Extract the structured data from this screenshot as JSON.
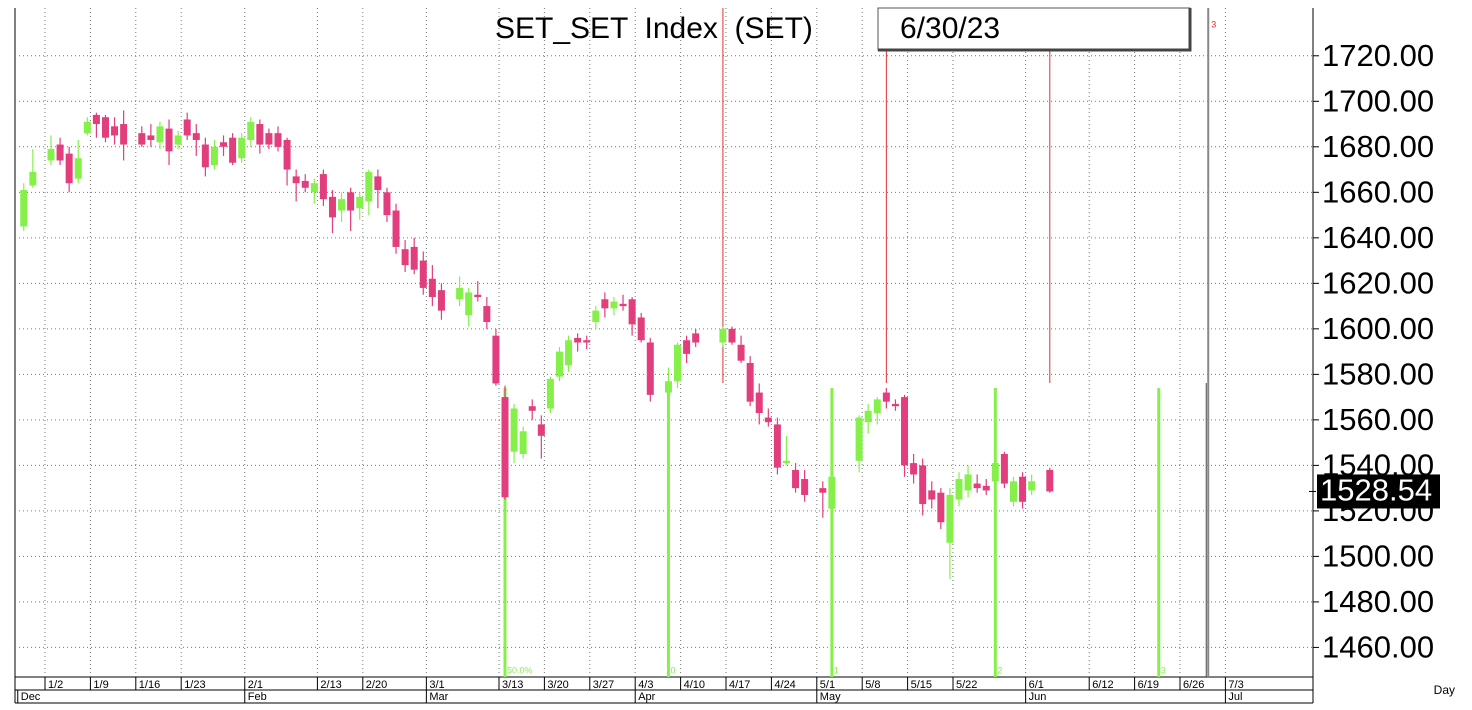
{
  "chart_data": {
    "type": "candlestick",
    "title": "SET_SET  Index  (SET)",
    "date": "6/30/23",
    "categories": [
      null,
      null,
      null,
      "1/2",
      null,
      null,
      null,
      null,
      "1/9",
      null,
      null,
      null,
      null,
      "1/16",
      null,
      null,
      null,
      null,
      "1/23",
      null,
      null,
      null,
      null,
      null,
      null,
      "2/1",
      null,
      null,
      null,
      null,
      null,
      null,
      null,
      "2/13",
      null,
      null,
      null,
      null,
      "2/20",
      null,
      null,
      null,
      null,
      null,
      null,
      "3/1",
      null,
      null,
      null,
      null,
      null,
      null,
      null,
      "3/13",
      null,
      null,
      null,
      null,
      "3/20",
      null,
      null,
      null,
      null,
      "3/27",
      null,
      null,
      null,
      null,
      "4/3",
      null,
      null,
      null,
      null,
      "4/10",
      null,
      null,
      null,
      null,
      "4/17",
      null,
      null,
      null,
      null,
      "4/24",
      null,
      null,
      null,
      null,
      "5/1",
      null,
      null,
      null,
      null,
      "5/8",
      null,
      null,
      null,
      null,
      "5/15",
      null,
      null,
      null,
      null,
      "5/22",
      null,
      null,
      null,
      null,
      null,
      null,
      null,
      "6/1",
      null,
      null,
      null,
      null,
      null,
      null,
      "6/12",
      null,
      null,
      null,
      null,
      "6/19",
      null,
      null,
      null,
      null,
      "6/26",
      null,
      null,
      null,
      null,
      "7/3",
      null,
      null
    ],
    "months": [
      "Dec",
      null,
      null,
      null,
      null,
      null,
      null,
      null,
      null,
      null,
      null,
      null,
      null,
      null,
      null,
      null,
      null,
      null,
      null,
      null,
      null,
      null,
      null,
      null,
      null,
      "Feb",
      null,
      null,
      null,
      null,
      null,
      null,
      null,
      null,
      null,
      null,
      null,
      null,
      null,
      null,
      null,
      null,
      null,
      null,
      null,
      "Mar",
      null,
      null,
      null,
      null,
      null,
      null,
      null,
      null,
      null,
      null,
      null,
      null,
      null,
      null,
      null,
      null,
      null,
      null,
      null,
      null,
      null,
      null,
      "Apr",
      null,
      null,
      null,
      null,
      null,
      null,
      null,
      null,
      null,
      null,
      null,
      null,
      null,
      null,
      null,
      null,
      null,
      null,
      null,
      "May",
      null,
      null,
      null,
      null,
      null,
      null,
      null,
      null,
      null,
      null,
      null,
      null,
      null,
      null,
      null,
      null,
      null,
      null,
      null,
      null,
      null,
      null,
      "Jun",
      null,
      null,
      null,
      null,
      null,
      null,
      null,
      null,
      null,
      null,
      null,
      null,
      null,
      null,
      null,
      null,
      null,
      null,
      null,
      null,
      null,
      "Jul",
      null,
      null
    ],
    "open": [
      1645,
      1663,
      null,
      1674,
      1681,
      1677,
      1666,
      1686,
      1694,
      1693,
      1689,
      1690,
      null,
      1686,
      1685,
      1682,
      1688,
      1681,
      1692,
      1686,
      1681,
      1672,
      1682,
      1684,
      1675,
      1683,
      1690,
      1686,
      1686,
      1683,
      1667,
      1665,
      1660,
      1668,
      1658,
      1652,
      1660,
      1653,
      1656,
      1667,
      1660,
      1652,
      1635,
      1636,
      1630,
      1622,
      1617,
      null,
      1613,
      1606,
      1615,
      1610,
      1597,
      1570,
      1546,
      1545,
      1566,
      1558,
      1565,
      1579,
      1584,
      1596,
      1595,
      1603,
      1613,
      1609,
      1611,
      1613,
      1605,
      1594,
      null,
      1572,
      1577,
      1595,
      1598,
      null,
      null,
      1594,
      1600,
      1593,
      1585,
      1572,
      1561,
      1558,
      1541,
      1538,
      1534,
      null,
      1530,
      1521,
      null,
      null,
      1542,
      1559,
      1563,
      1572,
      1567,
      1570,
      1541,
      1540,
      1529,
      1528,
      1506,
      1525,
      1529,
      1532,
      1531,
      1533,
      1545,
      1524,
      1535,
      1529,
      null,
      1538,
      null,
      null,
      null,
      null,
      null,
      null,
      null,
      null,
      null,
      null,
      null,
      null,
      null,
      null,
      null,
      null,
      null,
      null,
      null,
      null,
      null,
      null
    ],
    "high": [
      1664,
      1679,
      null,
      1685,
      1684,
      1680,
      1683,
      1693,
      1695,
      1694,
      1693,
      1696,
      null,
      1689,
      1690,
      1691,
      1692,
      1687,
      1695,
      1690,
      1684,
      1683,
      1685,
      1686,
      1686,
      1693,
      1692,
      1688,
      1689,
      1684,
      1670,
      1668,
      1666,
      1670,
      1661,
      1660,
      1662,
      1660,
      1670,
      1670,
      1662,
      1655,
      1639,
      1640,
      1634,
      1628,
      1620,
      null,
      1623,
      1618,
      1621,
      1614,
      1600,
      1575,
      1567,
      1557,
      1569,
      1562,
      1579,
      1592,
      1597,
      1598,
      1597,
      1610,
      1616,
      1614,
      1615,
      1614,
      1607,
      1596,
      null,
      1583,
      1594,
      1597,
      1600,
      null,
      null,
      1601,
      1601,
      1597,
      1588,
      1576,
      1565,
      1561,
      1553,
      1541,
      1538,
      null,
      1533,
      1546,
      null,
      null,
      1562,
      1567,
      1570,
      1574,
      1569,
      1571,
      1545,
      1543,
      1533,
      1530,
      1530,
      1537,
      1540,
      1536,
      1534,
      1546,
      1546,
      1535,
      1537,
      1536,
      null,
      1539,
      null,
      null,
      null,
      null,
      null,
      null,
      null,
      null,
      null,
      null,
      null,
      null,
      null,
      null,
      null,
      null,
      null,
      null,
      null,
      null,
      null,
      null
    ],
    "low": [
      1643,
      1662,
      null,
      1672,
      1672,
      1660,
      1664,
      1685,
      1684,
      1682,
      1681,
      1674,
      null,
      1680,
      1680,
      1679,
      1672,
      1679,
      1683,
      1676,
      1667,
      1670,
      1676,
      1672,
      1673,
      1680,
      1677,
      1679,
      1678,
      1663,
      1656,
      1660,
      1655,
      1654,
      1642,
      1647,
      1643,
      1648,
      1650,
      1653,
      1647,
      1633,
      1625,
      1624,
      1615,
      1610,
      1604,
      null,
      1610,
      1601,
      1612,
      1600,
      1575,
      1525,
      1541,
      1543,
      1560,
      1543,
      1563,
      1577,
      1581,
      1590,
      1591,
      1600,
      1605,
      1606,
      1608,
      1597,
      1594,
      1568,
      null,
      1567,
      1574,
      1585,
      1592,
      null,
      null,
      1592,
      1593,
      1585,
      1566,
      1558,
      1557,
      1536,
      1540,
      1528,
      1524,
      null,
      1517,
      1519,
      null,
      null,
      1537,
      1554,
      1558,
      1565,
      1564,
      1535,
      1532,
      1518,
      1521,
      1512,
      1490,
      1522,
      1526,
      1528,
      1527,
      1530,
      1530,
      1522,
      1521,
      1527,
      null,
      1528,
      null,
      null,
      null,
      null,
      null,
      null,
      null,
      null,
      null,
      null,
      null,
      null,
      null,
      null,
      null,
      null,
      null,
      null,
      null,
      null,
      null,
      null
    ],
    "close": [
      1661,
      1669,
      null,
      1679,
      1674,
      1664,
      1675,
      1691,
      1690,
      1684,
      1685,
      1681,
      null,
      1681,
      1683,
      1689,
      1678,
      1685,
      1685,
      1683,
      1671,
      1680,
      1680,
      1673,
      1684,
      1691,
      1681,
      1681,
      1680,
      1670,
      1664,
      1662,
      1664,
      1657,
      1649,
      1657,
      1652,
      1658,
      1669,
      1661,
      1650,
      1636,
      1628,
      1626,
      1618,
      1614,
      1608,
      null,
      1618,
      1616,
      1614,
      1603,
      1576,
      1526,
      1565,
      1555,
      1564,
      1553,
      1578,
      1590,
      1595,
      1594,
      1594,
      1608,
      1609,
      1612,
      1610,
      1602,
      1595,
      1571,
      null,
      1577,
      1593,
      1589,
      1594,
      null,
      null,
      1600,
      1594,
      1586,
      1568,
      1563,
      1559,
      1539,
      1542,
      1530,
      1527,
      null,
      1528,
      1535,
      null,
      null,
      1561,
      1564,
      1569,
      1568,
      1566,
      1540,
      1536,
      1523,
      1525,
      1515,
      1527,
      1534,
      1536,
      1530,
      1529,
      1541,
      1532,
      1533,
      1524,
      1533,
      null,
      1528.54,
      null,
      null,
      null,
      null,
      null,
      null,
      null,
      null,
      null,
      null,
      null,
      null,
      null,
      null,
      null,
      null,
      null,
      null,
      null,
      null,
      null,
      null
    ],
    "up_color": "#86f04a",
    "down_color": "#e23d7c",
    "ylim": [
      1447,
      1741
    ],
    "yticks": [
      {
        "value": 1460,
        "label": "1460.00"
      },
      {
        "value": 1480,
        "label": "1480.00"
      },
      {
        "value": 1500,
        "label": "1500.00"
      },
      {
        "value": 1520,
        "label": "1520.00"
      },
      {
        "value": 1540,
        "label": "1540.00"
      },
      {
        "value": 1560,
        "label": "1560.00"
      },
      {
        "value": 1580,
        "label": "1580.00"
      },
      {
        "value": 1600,
        "label": "1600.00"
      },
      {
        "value": 1620,
        "label": "1620.00"
      },
      {
        "value": 1640,
        "label": "1640.00"
      },
      {
        "value": 1660,
        "label": "1660.00"
      },
      {
        "value": 1680,
        "label": "1680.00"
      },
      {
        "value": 1700,
        "label": "1700.00"
      },
      {
        "value": 1720,
        "label": "1720.00"
      }
    ],
    "grid": true,
    "last_price": 1528.54,
    "cycle_labels": [
      "50.0%",
      "0",
      "1",
      "2",
      "3"
    ],
    "end_label": "3",
    "x_unit": "Day"
  }
}
